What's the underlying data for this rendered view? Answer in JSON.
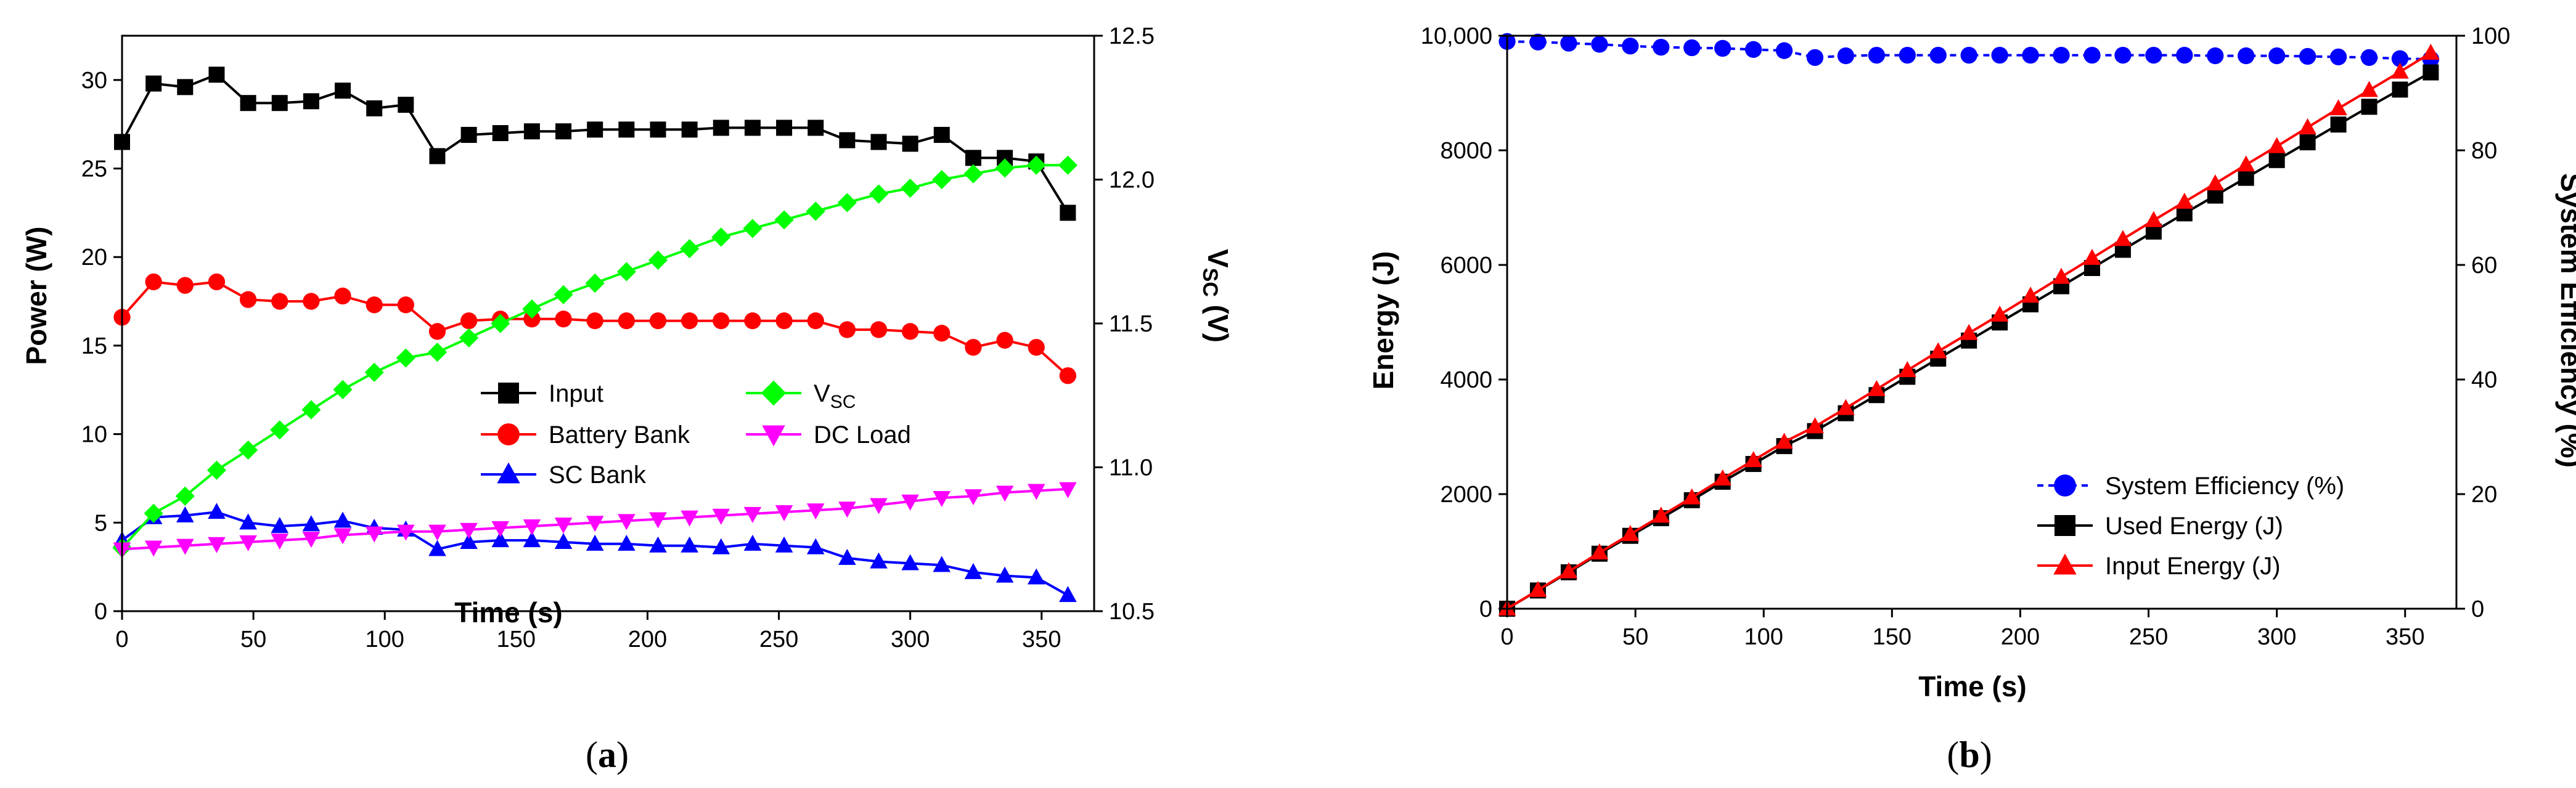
{
  "chart_data": [
    {
      "type": "line",
      "caption_prefix": "(",
      "caption_letter": "a",
      "caption_suffix": ")",
      "xlabel": "Time (s)",
      "ylabel": "Power (W)",
      "y2label_main": "V",
      "y2label_sub": "SC",
      "y2label_suffix": " (V)",
      "xlim": [
        0,
        370
      ],
      "ylim": [
        0,
        32.5
      ],
      "y2lim": [
        10.5,
        12.5
      ],
      "xticks": [
        "0",
        "50",
        "100",
        "150",
        "200",
        "250",
        "300",
        "350"
      ],
      "yticks": [
        "0",
        "5",
        "10",
        "15",
        "20",
        "25",
        "30"
      ],
      "y2ticks": [
        "10.5",
        "11.0",
        "11.5",
        "12.0",
        "12.5"
      ],
      "x": [
        0,
        12,
        24,
        36,
        48,
        60,
        72,
        84,
        96,
        108,
        120,
        132,
        144,
        156,
        168,
        180,
        192,
        204,
        216,
        228,
        240,
        252,
        264,
        276,
        288,
        300,
        312,
        324,
        336,
        348,
        360
      ],
      "series": [
        {
          "name": "Input",
          "color": "#000000",
          "marker": "square",
          "axis": "left",
          "values": [
            26.5,
            29.8,
            29.6,
            30.3,
            28.7,
            28.7,
            28.8,
            29.4,
            28.4,
            28.6,
            25.7,
            26.9,
            27.0,
            27.1,
            27.1,
            27.2,
            27.2,
            27.2,
            27.2,
            27.3,
            27.3,
            27.3,
            27.3,
            26.6,
            26.5,
            26.4,
            26.9,
            25.6,
            25.6,
            25.4,
            22.5
          ]
        },
        {
          "name": "Battery Bank",
          "color": "#ff0000",
          "marker": "circle",
          "axis": "left",
          "values": [
            16.6,
            18.6,
            18.4,
            18.6,
            17.6,
            17.5,
            17.5,
            17.8,
            17.3,
            17.3,
            15.8,
            16.4,
            16.5,
            16.5,
            16.5,
            16.4,
            16.4,
            16.4,
            16.4,
            16.4,
            16.4,
            16.4,
            16.4,
            15.9,
            15.9,
            15.8,
            15.7,
            14.9,
            15.3,
            14.9,
            13.3
          ]
        },
        {
          "name": "SC Bank",
          "color": "#0000ff",
          "marker": "triangle-up",
          "axis": "left",
          "values": [
            4.0,
            5.3,
            5.4,
            5.6,
            5.0,
            4.8,
            4.9,
            5.1,
            4.7,
            4.6,
            3.5,
            3.9,
            4.0,
            4.0,
            3.9,
            3.8,
            3.8,
            3.7,
            3.7,
            3.6,
            3.8,
            3.7,
            3.6,
            3.0,
            2.8,
            2.7,
            2.6,
            2.2,
            2.0,
            1.9,
            0.9
          ]
        },
        {
          "name": "V",
          "name_sub": "SC",
          "color": "#00ff00",
          "marker": "diamond",
          "axis": "right",
          "values": [
            10.72,
            10.84,
            10.9,
            10.99,
            11.06,
            11.13,
            11.2,
            11.27,
            11.33,
            11.38,
            11.4,
            11.45,
            11.5,
            11.55,
            11.6,
            11.64,
            11.68,
            11.72,
            11.76,
            11.8,
            11.83,
            11.86,
            11.89,
            11.92,
            11.95,
            11.97,
            12.0,
            12.02,
            12.04,
            12.05,
            12.05
          ]
        },
        {
          "name": "DC Load",
          "color": "#ff00ff",
          "marker": "triangle-down",
          "axis": "left",
          "values": [
            3.5,
            3.6,
            3.7,
            3.8,
            3.9,
            4.0,
            4.1,
            4.3,
            4.4,
            4.5,
            4.5,
            4.6,
            4.7,
            4.8,
            4.9,
            5.0,
            5.1,
            5.2,
            5.3,
            5.4,
            5.5,
            5.6,
            5.7,
            5.8,
            6.0,
            6.2,
            6.4,
            6.5,
            6.7,
            6.8,
            6.9
          ]
        }
      ]
    },
    {
      "type": "line",
      "caption_prefix": "(",
      "caption_letter": "b",
      "caption_suffix": ")",
      "xlabel": "Time (s)",
      "ylabel": "Energy (J)",
      "y2label": "System Efficiency (%)",
      "xlim": [
        0,
        370
      ],
      "ylim": [
        0,
        10000
      ],
      "y2lim": [
        0,
        100
      ],
      "xticks": [
        "0",
        "50",
        "100",
        "150",
        "200",
        "250",
        "300",
        "350"
      ],
      "yticks": [
        "0",
        "2000",
        "4000",
        "6000",
        "8000",
        "10,000"
      ],
      "y2ticks": [
        "0",
        "20",
        "40",
        "60",
        "80",
        "100"
      ],
      "x": [
        0,
        12,
        24,
        36,
        48,
        60,
        72,
        84,
        96,
        108,
        120,
        132,
        144,
        156,
        168,
        180,
        192,
        204,
        216,
        228,
        240,
        252,
        264,
        276,
        288,
        300,
        312,
        324,
        336,
        348,
        360
      ],
      "series": [
        {
          "name": "System Efficiency (%)",
          "color": "#0000ff",
          "marker": "circle",
          "axis": "right",
          "dash": true,
          "values": [
            99.0,
            98.9,
            98.7,
            98.5,
            98.2,
            98.0,
            97.9,
            97.8,
            97.6,
            97.4,
            96.2,
            96.5,
            96.6,
            96.6,
            96.6,
            96.6,
            96.6,
            96.6,
            96.6,
            96.6,
            96.6,
            96.6,
            96.6,
            96.5,
            96.5,
            96.5,
            96.4,
            96.3,
            96.2,
            96.0,
            95.9
          ]
        },
        {
          "name": "Used Energy (J)",
          "color": "#000000",
          "marker": "square",
          "axis": "left",
          "values": [
            0,
            318,
            636,
            960,
            1272,
            1580,
            1894,
            2216,
            2526,
            2838,
            3100,
            3412,
            3728,
            4048,
            4364,
            4680,
            4996,
            5312,
            5628,
            5946,
            6264,
            6582,
            6900,
            7210,
            7520,
            7830,
            8140,
            8450,
            8760,
            9060,
            9360
          ]
        },
        {
          "name": "Input Energy (J)",
          "color": "#ff0000",
          "marker": "triangle-up",
          "axis": "left",
          "values": [
            0,
            325,
            650,
            980,
            1300,
            1620,
            1940,
            2270,
            2590,
            2910,
            3180,
            3500,
            3830,
            4160,
            4490,
            4810,
            5130,
            5460,
            5790,
            6120,
            6450,
            6780,
            7100,
            7420,
            7750,
            8070,
            8400,
            8730,
            9050,
            9370,
            9700
          ]
        }
      ]
    }
  ]
}
